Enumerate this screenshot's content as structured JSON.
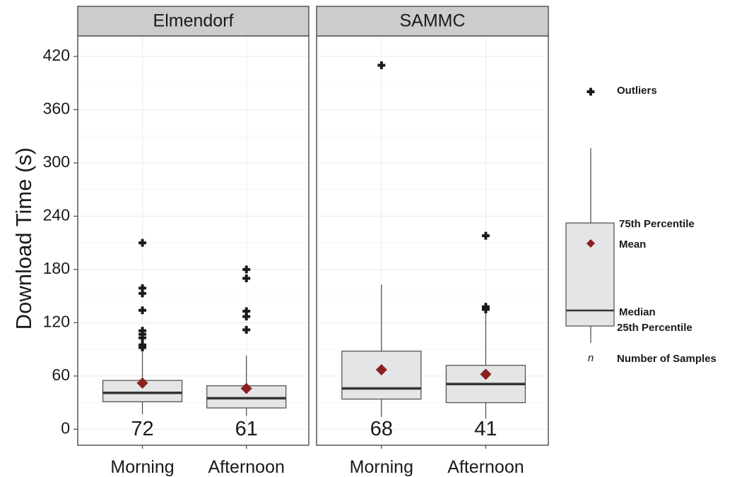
{
  "chart_data": {
    "type": "boxplot",
    "ylabel": "Download Time (s)",
    "ylim": [
      -18,
      443
    ],
    "yticks": [
      0,
      60,
      120,
      180,
      240,
      300,
      360,
      420
    ],
    "categories": [
      "Morning",
      "Afternoon"
    ],
    "grid": true,
    "colors": {
      "box_fill": "#e4e5e7",
      "box_stroke": "#555555",
      "median": "#333333",
      "mean": "#8b2020",
      "outlier": "#1a1a1a",
      "strip_fill": "#cccccc",
      "grid": "#eeeeee",
      "panel_border": "#555555"
    },
    "panels": [
      {
        "name": "Elmendorf",
        "groups": [
          {
            "category": "Morning",
            "n": "72",
            "whisker_low": 17,
            "q1": 31,
            "median": 41,
            "q3": 55,
            "whisker_high": 87,
            "mean": 52,
            "outliers": [
              92,
              95,
              103,
              107,
              111,
              134,
              153,
              159,
              210
            ]
          },
          {
            "category": "Afternoon",
            "n": "61",
            "whisker_low": 15,
            "q1": 24,
            "median": 35,
            "q3": 49,
            "whisker_high": 83,
            "mean": 46,
            "outliers": [
              112,
              127,
              133,
              170,
              180
            ]
          }
        ]
      },
      {
        "name": "SAMMC",
        "groups": [
          {
            "category": "Morning",
            "n": "68",
            "whisker_low": 14,
            "q1": 34,
            "median": 46,
            "q3": 88,
            "whisker_high": 163,
            "mean": 67,
            "outliers": [
              410
            ]
          },
          {
            "category": "Afternoon",
            "n": "41",
            "whisker_low": 12,
            "q1": 30,
            "median": 51,
            "q3": 72,
            "whisker_high": 133,
            "mean": 62,
            "outliers": [
              135,
              138,
              218
            ]
          }
        ]
      }
    ],
    "legend": {
      "position": "right",
      "outliers_label": "Outliers",
      "q3_label": "75th Percentile",
      "mean_label": "Mean",
      "median_label": "Median",
      "q1_label": "25th Percentile",
      "n_symbol": "n",
      "n_label": "Number of Samples"
    }
  }
}
